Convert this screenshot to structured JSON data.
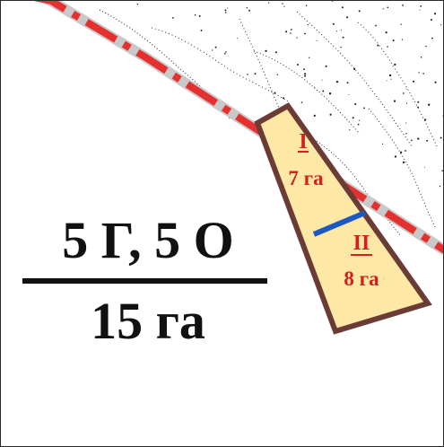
{
  "map": {
    "composition_label": "5 Г, 5 О",
    "area_label": "15 га",
    "plot": {
      "part_1_id": "I",
      "part_1_area": "7 га",
      "part_2_id": "II",
      "part_2_area": "8 га"
    }
  },
  "colors": {
    "road_gray": "#c9c9c9",
    "boundary_red": "#e53030",
    "plot_fill": "#fde8a6",
    "plot_outline": "#6b3b35",
    "divider_blue": "#1c58c2",
    "plot_text_red": "#d12020",
    "text_dark": "#111111"
  }
}
